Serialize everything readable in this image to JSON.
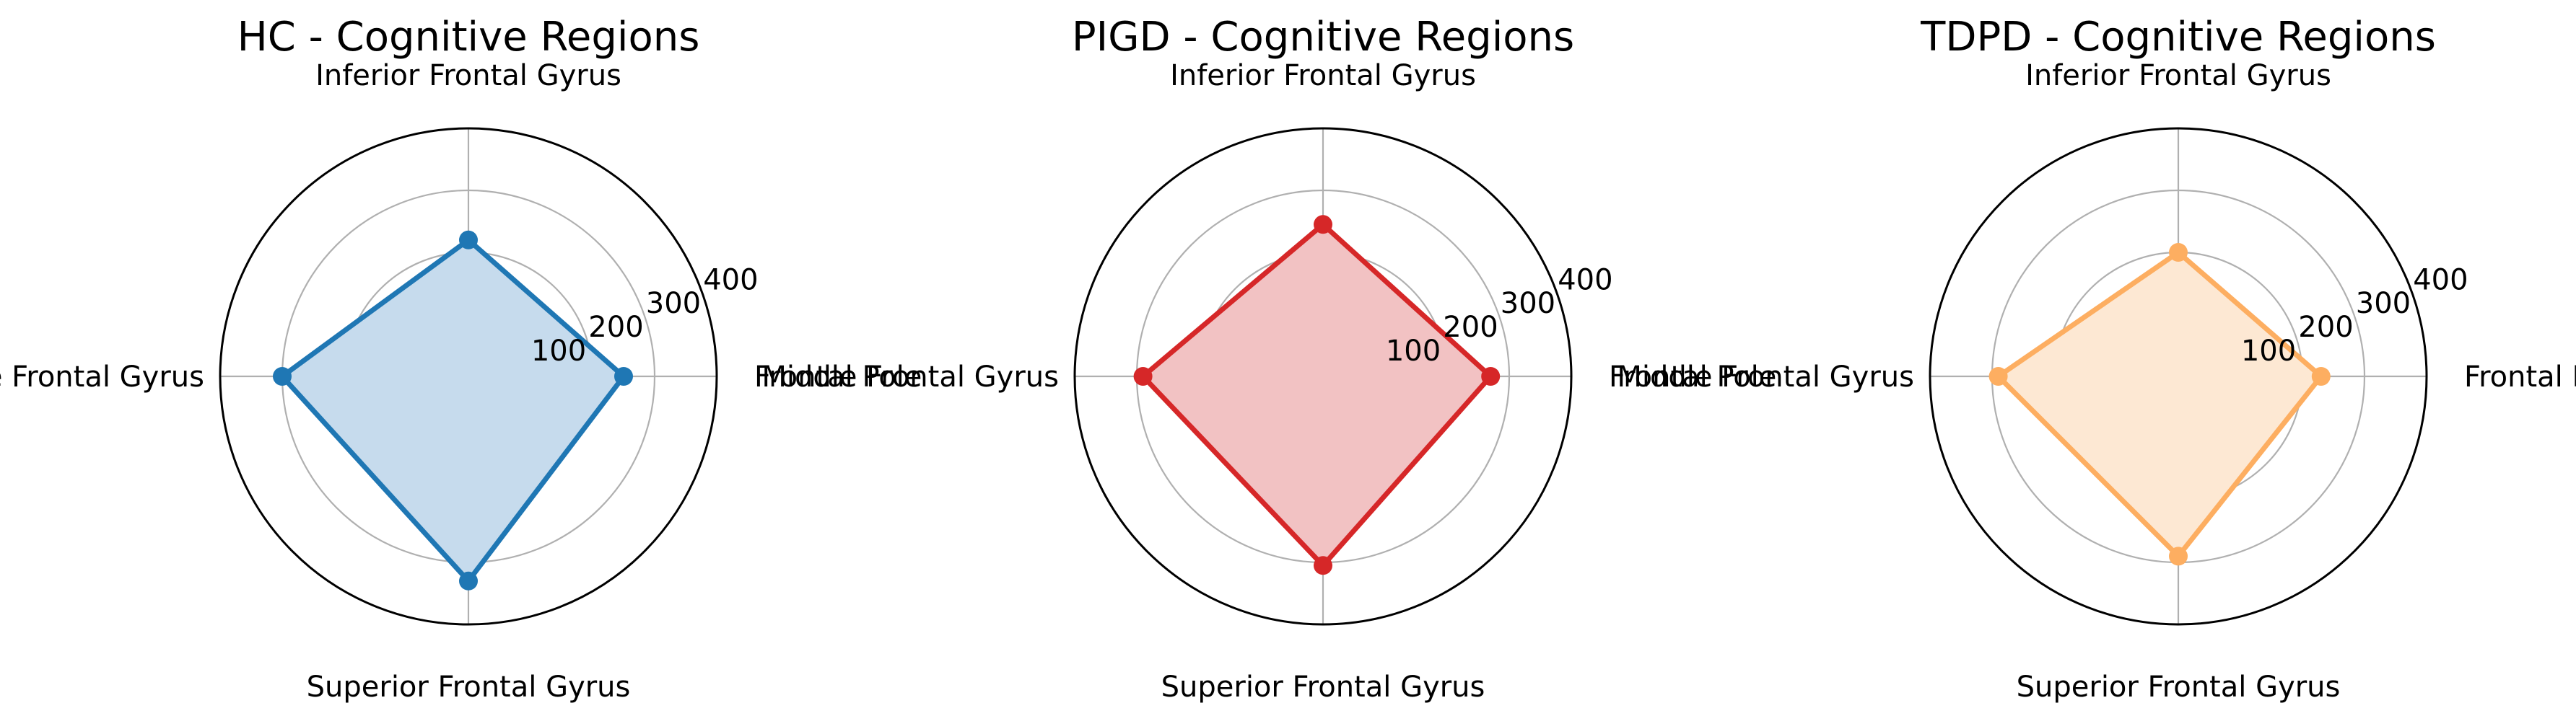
{
  "chart_data": [
    {
      "type": "radar",
      "title": "HC - Cognitive Regions",
      "axes": [
        "Frontal Pole",
        "Inferior Frontal Gyrus",
        "Middle Frontal Gyrus",
        "Superior Frontal Gyrus"
      ],
      "values": [
        250,
        220,
        300,
        330
      ],
      "rlim": [
        0,
        400
      ],
      "rticks": [
        100,
        200,
        300,
        400
      ],
      "grid": true,
      "color": "#1f77b4",
      "fill_color": "#c6dbed"
    },
    {
      "type": "radar",
      "title": "PIGD - Cognitive Regions",
      "axes": [
        "Frontal Pole",
        "Inferior Frontal Gyrus",
        "Middle Frontal Gyrus",
        "Superior Frontal Gyrus"
      ],
      "values": [
        270,
        245,
        290,
        305
      ],
      "rlim": [
        0,
        400
      ],
      "rticks": [
        100,
        200,
        300,
        400
      ],
      "grid": true,
      "color": "#d62728",
      "fill_color": "#f2c2c3"
    },
    {
      "type": "radar",
      "title": "TDPD - Cognitive Regions",
      "axes": [
        "Frontal Pole",
        "Inferior Frontal Gyrus",
        "Middle Frontal Gyrus",
        "Superior Frontal Gyrus"
      ],
      "values": [
        230,
        200,
        290,
        290
      ],
      "rlim": [
        0,
        400
      ],
      "rticks": [
        100,
        200,
        300,
        400
      ],
      "grid": true,
      "color": "#fdae61",
      "fill_color": "#fde8d3"
    }
  ]
}
